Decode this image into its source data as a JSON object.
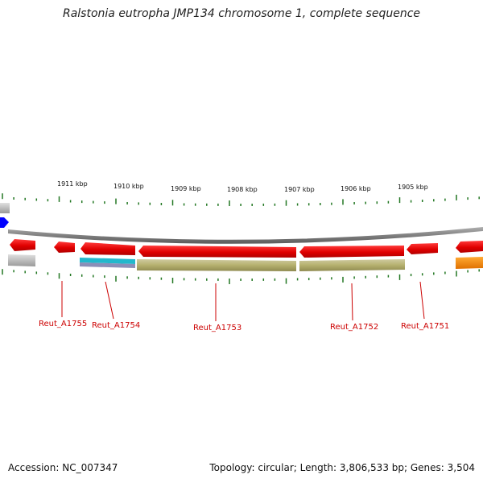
{
  "title": "Ralstonia eutropha JMP134 chromosome 1, complete sequence",
  "footer": {
    "accession": "Accession: NC_007347",
    "summary": "Topology: circular; Length: 3,806,533 bp; Genes: 3,504"
  },
  "scale_labels": [
    "1911 kbp",
    "1910 kbp",
    "1909 kbp",
    "1908 kbp",
    "1907 kbp",
    "1906 kbp",
    "1905 kbp"
  ],
  "genes": [
    {
      "locus": "Reut_A1755",
      "strand": "reverse",
      "color": "#dd0000"
    },
    {
      "locus": "Reut_A1754",
      "strand": "reverse",
      "color": "#dd0000"
    },
    {
      "locus": "Reut_A1753",
      "strand": "reverse",
      "color": "#dd0000"
    },
    {
      "locus": "Reut_A1752",
      "strand": "reverse",
      "color": "#dd0000"
    },
    {
      "locus": "Reut_A1751",
      "strand": "reverse",
      "color": "#dd0000"
    }
  ],
  "colors": {
    "cds": "#dd0000",
    "backbone": "#888888",
    "tick": "#227722",
    "feature_olive": "#b5b06e",
    "feature_cyan": "#22b8cc",
    "feature_gray": "#bbbbbb",
    "feature_orange": "#ff8800",
    "feature_blue": "#0000ff"
  }
}
